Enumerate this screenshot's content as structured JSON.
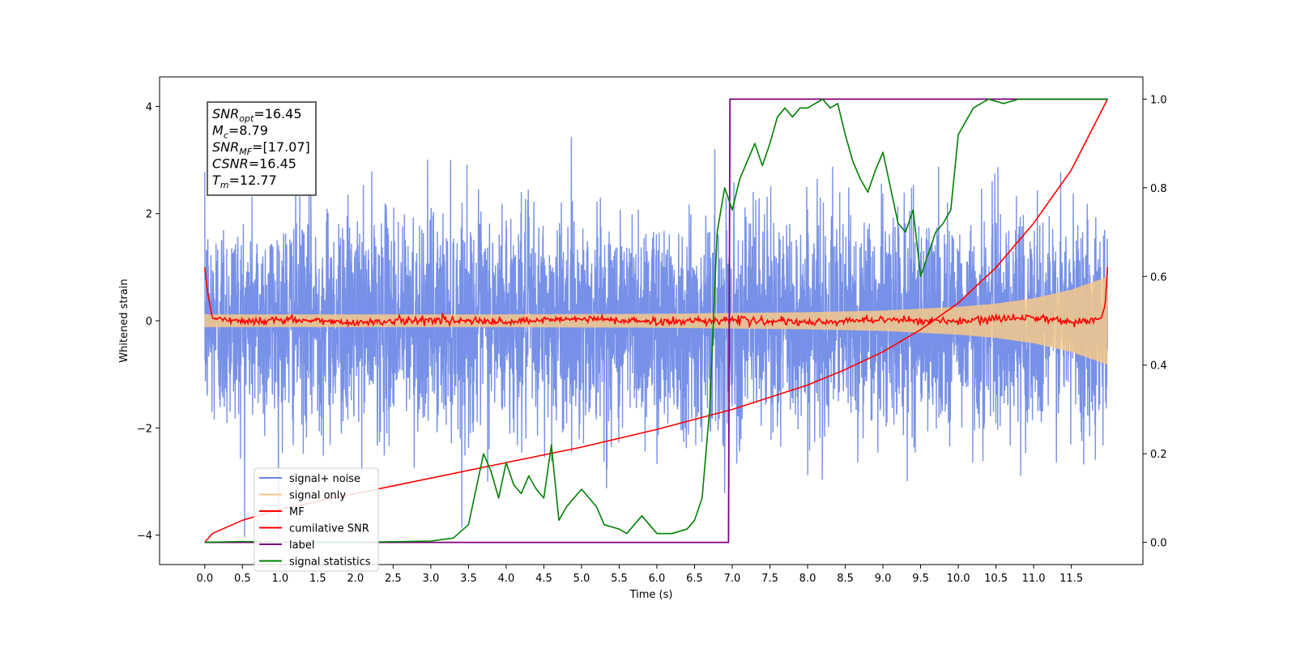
{
  "chart_data": {
    "type": "line",
    "title": "",
    "xlabel": "Time (s)",
    "ylabel": "Whitened strain",
    "xlim": [
      -0.6,
      12.45
    ],
    "ylim": [
      -4.55,
      4.55
    ],
    "ylim_right": [
      -0.05,
      1.05
    ],
    "xticks": [
      0.0,
      0.5,
      1.0,
      1.5,
      2.0,
      2.5,
      3.0,
      3.5,
      4.0,
      4.5,
      5.0,
      5.5,
      6.0,
      6.5,
      7.0,
      7.5,
      8.0,
      8.5,
      9.0,
      9.5,
      10.0,
      10.5,
      11.0,
      11.5
    ],
    "xtick_labels": [
      "0.0",
      "0.5",
      "1.0",
      "1.5",
      "2.0",
      "2.5",
      "3.0",
      "3.5",
      "4.0",
      "4.5",
      "5.0",
      "5.5",
      "6.0",
      "6.5",
      "7.0",
      "7.5",
      "8.0",
      "8.5",
      "9.0",
      "9.5",
      "10.0",
      "10.5",
      "11.0",
      "11.5"
    ],
    "yticks_left": [
      -4,
      -2,
      0,
      2,
      4
    ],
    "ytick_labels_left": [
      "−4",
      "−2",
      "0",
      "2",
      "4"
    ],
    "yticks_right": [
      0.0,
      0.2,
      0.4,
      0.6,
      0.8,
      1.0
    ],
    "ytick_labels_right": [
      "0.0",
      "0.2",
      "0.4",
      "0.6",
      "0.8",
      "1.0"
    ],
    "grid": false,
    "legend_position": "lower-left",
    "stats_box": [
      {
        "sym": "SNR",
        "sub": "opt",
        "value": "=16.45"
      },
      {
        "sym": "M",
        "sub": "c",
        "value": "=8.79"
      },
      {
        "sym": "SNR",
        "sub": "MF",
        "value": "=[17.07]"
      },
      {
        "sym": "CSNR",
        "sub": "",
        "value": "=16.45"
      },
      {
        "sym": "T",
        "sub": "m",
        "value": "=12.77"
      }
    ],
    "series": [
      {
        "name": "signal+ noise",
        "color": "#6b87e6",
        "axis": "left",
        "description_values": {
          "x_start": 0.0,
          "x_end": 11.98,
          "mean": 0.0,
          "std": 1.0,
          "min": -4.1,
          "max": 4.05
        }
      },
      {
        "name": "signal only",
        "color": "#f5c98a",
        "axis": "left",
        "envelope": {
          "x": [
            0,
            2,
            4,
            6,
            8,
            9,
            10,
            10.5,
            11,
            11.5,
            11.98
          ],
          "amp": [
            0.12,
            0.12,
            0.12,
            0.13,
            0.16,
            0.19,
            0.26,
            0.32,
            0.42,
            0.58,
            0.82
          ]
        }
      },
      {
        "name": "MF",
        "color": "#ff0000",
        "axis": "left",
        "x": [
          0.0,
          0.03,
          0.1,
          0.3,
          0.6,
          1.0,
          2.0,
          3.0,
          4.0,
          5.0,
          6.0,
          7.0,
          8.0,
          9.0,
          10.0,
          11.0,
          11.5,
          11.9,
          11.95,
          11.98
        ],
        "y": [
          1.0,
          0.6,
          0.05,
          0.03,
          -0.02,
          0.02,
          -0.03,
          0.02,
          -0.03,
          0.04,
          -0.02,
          0.02,
          -0.04,
          0.03,
          -0.02,
          0.08,
          -0.03,
          0.05,
          0.3,
          1.0
        ]
      },
      {
        "name": "cumilative SNR",
        "color": "#ff0000",
        "axis": "right",
        "x": [
          0.0,
          0.1,
          0.5,
          1.0,
          2.0,
          3.0,
          4.0,
          5.0,
          6.0,
          7.0,
          8.0,
          8.5,
          9.0,
          9.5,
          10.0,
          10.5,
          11.0,
          11.5,
          11.98
        ],
        "y": [
          0.0,
          0.02,
          0.05,
          0.075,
          0.11,
          0.145,
          0.18,
          0.215,
          0.255,
          0.3,
          0.355,
          0.39,
          0.43,
          0.48,
          0.54,
          0.62,
          0.72,
          0.84,
          1.0
        ]
      },
      {
        "name": "label",
        "color": "#800080",
        "axis": "right",
        "x": [
          0.0,
          6.95,
          6.95,
          6.97,
          6.97,
          11.98
        ],
        "y": [
          0.0,
          0.0,
          0.0,
          1.0,
          1.0,
          1.0
        ]
      },
      {
        "name": "signal statistics",
        "color": "#008000",
        "axis": "right",
        "x": [
          0.0,
          0.5,
          1.0,
          2.0,
          3.0,
          3.3,
          3.5,
          3.6,
          3.7,
          3.8,
          3.9,
          4.0,
          4.1,
          4.2,
          4.3,
          4.4,
          4.5,
          4.6,
          4.7,
          4.8,
          4.9,
          5.0,
          5.1,
          5.2,
          5.3,
          5.4,
          5.5,
          5.6,
          5.7,
          5.8,
          5.9,
          6.0,
          6.2,
          6.4,
          6.5,
          6.6,
          6.7,
          6.8,
          6.9,
          7.0,
          7.1,
          7.2,
          7.3,
          7.4,
          7.5,
          7.6,
          7.7,
          7.8,
          7.9,
          8.0,
          8.2,
          8.3,
          8.4,
          8.5,
          8.6,
          8.7,
          8.8,
          8.9,
          9.0,
          9.1,
          9.2,
          9.3,
          9.4,
          9.5,
          9.6,
          9.7,
          9.8,
          9.9,
          10.0,
          10.2,
          10.4,
          10.6,
          10.8,
          11.0,
          11.5,
          11.98
        ],
        "y": [
          0.0,
          0.002,
          0.0,
          0.0,
          0.003,
          0.01,
          0.04,
          0.12,
          0.2,
          0.16,
          0.1,
          0.18,
          0.13,
          0.11,
          0.15,
          0.12,
          0.1,
          0.22,
          0.05,
          0.08,
          0.1,
          0.12,
          0.1,
          0.08,
          0.04,
          0.035,
          0.03,
          0.02,
          0.04,
          0.06,
          0.04,
          0.02,
          0.02,
          0.03,
          0.05,
          0.1,
          0.3,
          0.7,
          0.8,
          0.75,
          0.82,
          0.86,
          0.9,
          0.85,
          0.9,
          0.96,
          0.98,
          0.96,
          0.98,
          0.98,
          1.0,
          0.98,
          0.99,
          0.92,
          0.86,
          0.82,
          0.79,
          0.84,
          0.88,
          0.8,
          0.72,
          0.7,
          0.75,
          0.6,
          0.65,
          0.7,
          0.72,
          0.75,
          0.92,
          0.98,
          1.0,
          0.99,
          1.0,
          1.0,
          1.0,
          1.0
        ]
      }
    ]
  }
}
